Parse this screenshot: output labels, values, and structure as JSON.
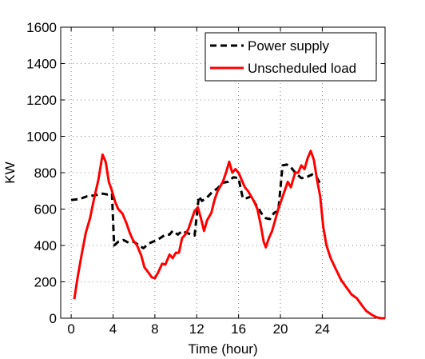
{
  "chart_data": {
    "type": "line",
    "xlabel": "Time (hour)",
    "ylabel": "KW",
    "xlim": [
      -1,
      30
    ],
    "ylim": [
      0,
      1600
    ],
    "x_ticks": [
      "0",
      "4",
      "8",
      "12",
      "16",
      "20",
      "24"
    ],
    "x_tick_values": [
      0,
      4,
      8,
      12,
      16,
      20,
      24
    ],
    "y_ticks": [
      "0",
      "200",
      "400",
      "600",
      "800",
      "1000",
      "1200",
      "1400",
      "1600"
    ],
    "y_tick_values": [
      0,
      200,
      400,
      600,
      800,
      1000,
      1200,
      1400,
      1600
    ],
    "grid": true,
    "legend_position": "top-right",
    "series": [
      {
        "name": "Power supply",
        "color": "#000000",
        "dash": "dashed",
        "points": [
          [
            0,
            650
          ],
          [
            0.8,
            655
          ],
          [
            1.5,
            670
          ],
          [
            2.2,
            675
          ],
          [
            3.0,
            685
          ],
          [
            3.5,
            680
          ],
          [
            3.9,
            685
          ],
          [
            4.1,
            400
          ],
          [
            4.5,
            420
          ],
          [
            5.0,
            430
          ],
          [
            5.5,
            415
          ],
          [
            6.0,
            420
          ],
          [
            6.5,
            400
          ],
          [
            6.9,
            385
          ],
          [
            7.4,
            410
          ],
          [
            8.0,
            425
          ],
          [
            8.5,
            440
          ],
          [
            9.0,
            460
          ],
          [
            9.4,
            460
          ],
          [
            9.7,
            480
          ],
          [
            10.2,
            460
          ],
          [
            10.6,
            480
          ],
          [
            11.0,
            470
          ],
          [
            11.5,
            460
          ],
          [
            11.8,
            455
          ],
          [
            12.2,
            670
          ],
          [
            12.5,
            645
          ],
          [
            13.0,
            665
          ],
          [
            13.5,
            695
          ],
          [
            14.0,
            715
          ],
          [
            14.5,
            745
          ],
          [
            15.0,
            750
          ],
          [
            15.5,
            775
          ],
          [
            16.0,
            770
          ],
          [
            16.4,
            660
          ],
          [
            16.8,
            660
          ],
          [
            17.2,
            670
          ],
          [
            17.6,
            630
          ],
          [
            18.2,
            575
          ],
          [
            18.6,
            550
          ],
          [
            19.0,
            545
          ],
          [
            19.4,
            580
          ],
          [
            19.8,
            590
          ],
          [
            20.2,
            840
          ],
          [
            20.6,
            845
          ],
          [
            21.0,
            830
          ],
          [
            21.5,
            795
          ],
          [
            22.0,
            770
          ],
          [
            22.5,
            775
          ],
          [
            23.0,
            790
          ],
          [
            23.5,
            770
          ],
          [
            23.9,
            730
          ]
        ]
      },
      {
        "name": "Unscheduled load",
        "color": "#ff0000",
        "dash": "solid",
        "points": [
          [
            0.3,
            105
          ],
          [
            0.6,
            220
          ],
          [
            1.0,
            350
          ],
          [
            1.4,
            470
          ],
          [
            1.8,
            550
          ],
          [
            2.2,
            660
          ],
          [
            2.6,
            760
          ],
          [
            3.0,
            900
          ],
          [
            3.3,
            860
          ],
          [
            3.6,
            750
          ],
          [
            3.9,
            700
          ],
          [
            4.2,
            640
          ],
          [
            4.5,
            600
          ],
          [
            4.9,
            575
          ],
          [
            5.3,
            520
          ],
          [
            5.6,
            470
          ],
          [
            5.9,
            430
          ],
          [
            6.3,
            400
          ],
          [
            6.7,
            345
          ],
          [
            7.0,
            280
          ],
          [
            7.4,
            250
          ],
          [
            7.7,
            225
          ],
          [
            8.0,
            220
          ],
          [
            8.3,
            250
          ],
          [
            8.7,
            300
          ],
          [
            9.0,
            295
          ],
          [
            9.4,
            350
          ],
          [
            9.7,
            330
          ],
          [
            10.0,
            360
          ],
          [
            10.3,
            360
          ],
          [
            10.6,
            440
          ],
          [
            10.9,
            460
          ],
          [
            11.2,
            490
          ],
          [
            11.5,
            540
          ],
          [
            11.8,
            590
          ],
          [
            12.1,
            610
          ],
          [
            12.4,
            550
          ],
          [
            12.7,
            480
          ],
          [
            13.0,
            540
          ],
          [
            13.4,
            580
          ],
          [
            13.7,
            650
          ],
          [
            14.0,
            700
          ],
          [
            14.5,
            750
          ],
          [
            14.8,
            800
          ],
          [
            15.1,
            860
          ],
          [
            15.4,
            800
          ],
          [
            15.7,
            820
          ],
          [
            16.0,
            800
          ],
          [
            16.3,
            760
          ],
          [
            16.6,
            720
          ],
          [
            16.9,
            700
          ],
          [
            17.2,
            670
          ],
          [
            17.5,
            640
          ],
          [
            17.8,
            600
          ],
          [
            18.1,
            520
          ],
          [
            18.4,
            420
          ],
          [
            18.6,
            390
          ],
          [
            18.9,
            440
          ],
          [
            19.2,
            480
          ],
          [
            19.5,
            540
          ],
          [
            19.8,
            600
          ],
          [
            20.1,
            650
          ],
          [
            20.4,
            700
          ],
          [
            20.7,
            750
          ],
          [
            21.0,
            720
          ],
          [
            21.4,
            800
          ],
          [
            21.7,
            800
          ],
          [
            22.0,
            840
          ],
          [
            22.3,
            820
          ],
          [
            22.6,
            880
          ],
          [
            22.9,
            920
          ],
          [
            23.2,
            870
          ],
          [
            23.5,
            760
          ],
          [
            23.8,
            670
          ],
          [
            24.1,
            500
          ],
          [
            24.4,
            400
          ],
          [
            24.8,
            330
          ],
          [
            25.3,
            270
          ],
          [
            25.8,
            210
          ],
          [
            26.3,
            170
          ],
          [
            26.8,
            130
          ],
          [
            27.3,
            110
          ],
          [
            27.8,
            70
          ],
          [
            28.2,
            40
          ],
          [
            28.7,
            20
          ],
          [
            29.2,
            5
          ],
          [
            29.6,
            0
          ],
          [
            30.0,
            0
          ]
        ]
      }
    ]
  }
}
